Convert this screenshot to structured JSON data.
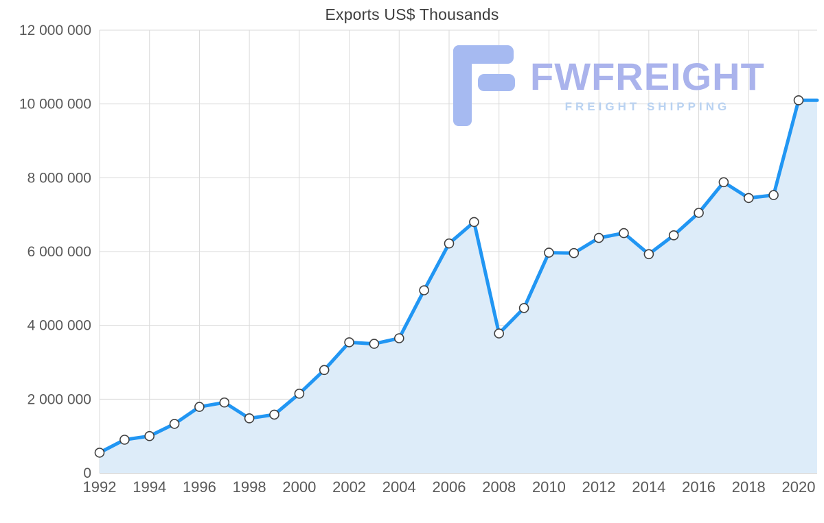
{
  "title": "Exports US$ Thousands",
  "logo": {
    "name": "FWFREIGHT",
    "subtitle": "FREIGHT SHIPPING",
    "name_color": "#aab3ec",
    "subtitle_color": "#b9d2f1",
    "glyph_color": "#a6baf1"
  },
  "chart_data": {
    "type": "area",
    "title": "Exports US$ Thousands",
    "x": [
      1992,
      1993,
      1994,
      1995,
      1996,
      1997,
      1998,
      1999,
      2000,
      2001,
      2002,
      2003,
      2004,
      2005,
      2006,
      2007,
      2008,
      2009,
      2010,
      2011,
      2012,
      2013,
      2014,
      2015,
      2016,
      2017,
      2018,
      2019,
      2020
    ],
    "series": [
      {
        "name": "Exports US$ Thousands",
        "values": [
          550000,
          900000,
          1000000,
          1330000,
          1790000,
          1910000,
          1480000,
          1580000,
          2150000,
          2790000,
          3540000,
          3500000,
          3650000,
          4950000,
          6220000,
          6800000,
          3780000,
          4470000,
          5970000,
          5960000,
          6370000,
          6500000,
          5930000,
          6440000,
          7050000,
          7880000,
          7450000,
          7530000,
          10100000
        ]
      }
    ],
    "ylim": [
      0,
      12000000
    ],
    "yticks": [
      {
        "value": 0,
        "label": "0"
      },
      {
        "value": 2000000,
        "label": "2 000 000"
      },
      {
        "value": 4000000,
        "label": "4 000 000"
      },
      {
        "value": 6000000,
        "label": "6 000 000"
      },
      {
        "value": 8000000,
        "label": "8 000 000"
      },
      {
        "value": 10000000,
        "label": "10 000 000"
      },
      {
        "value": 12000000,
        "label": "12 000 000"
      }
    ],
    "xticks": [
      1992,
      1994,
      1996,
      1998,
      2000,
      2002,
      2004,
      2006,
      2008,
      2010,
      2012,
      2014,
      2016,
      2018,
      2020
    ],
    "grid": true,
    "legend": "none",
    "line_color": "#2196f3",
    "fill_color": "#ddecf9",
    "marker_fill": "#ffffff",
    "marker_stroke": "#404040",
    "grid_color": "#dadada",
    "axis_line_color": "#c9c9c9",
    "tick_label_color": "#595959"
  }
}
